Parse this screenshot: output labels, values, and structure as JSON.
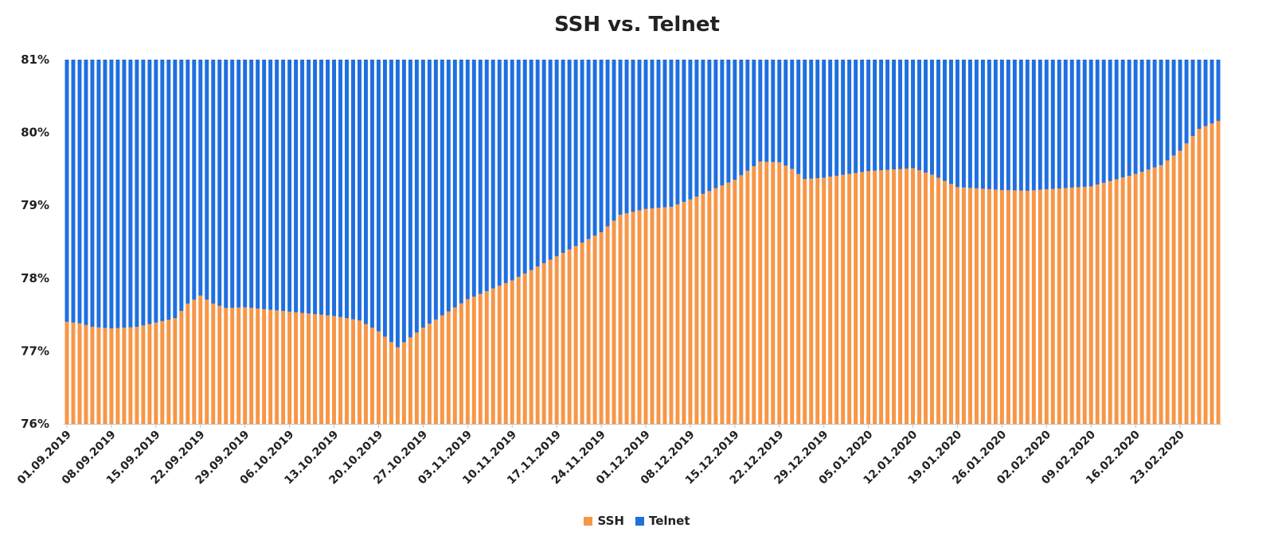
{
  "chart_data": {
    "type": "bar",
    "stacked": true,
    "title": "SSH vs. Telnet",
    "xlabel": "",
    "ylabel": "",
    "ylim": [
      0.76,
      0.81
    ],
    "y_ticks": [
      "76%",
      "77%",
      "78%",
      "79%",
      "80%",
      "81%"
    ],
    "x_start": "01.09.2019",
    "x_end": "29.02.2020",
    "x_tick_labels": [
      "01.09.2019",
      "08.09.2019",
      "15.09.2019",
      "22.09.2019",
      "29.09.2019",
      "06.10.2019",
      "13.10.2019",
      "20.10.2019",
      "27.10.2019",
      "03.11.2019",
      "10.11.2019",
      "17.11.2019",
      "24.11.2019",
      "01.12.2019",
      "08.12.2019",
      "15.12.2019",
      "22.12.2019",
      "29.12.2019",
      "05.01.2020",
      "12.01.2020",
      "19.01.2020",
      "26.01.2020",
      "02.02.2020",
      "09.02.2020",
      "16.02.2020",
      "23.02.2020"
    ],
    "series": [
      {
        "name": "SSH",
        "color": "#F79646",
        "keyframes": [
          [
            "01.09.2019",
            0.774
          ],
          [
            "03.09.2019",
            0.7738
          ],
          [
            "05.09.2019",
            0.7733
          ],
          [
            "08.09.2019",
            0.7731
          ],
          [
            "12.09.2019",
            0.7733
          ],
          [
            "15.09.2019",
            0.7739
          ],
          [
            "18.09.2019",
            0.7745
          ],
          [
            "20.09.2019",
            0.7765
          ],
          [
            "22.09.2019",
            0.7776
          ],
          [
            "24.09.2019",
            0.7765
          ],
          [
            "26.09.2019",
            0.7759
          ],
          [
            "29.09.2019",
            0.776
          ],
          [
            "06.10.2019",
            0.7754
          ],
          [
            "13.10.2019",
            0.7748
          ],
          [
            "17.10.2019",
            0.7742
          ],
          [
            "20.10.2019",
            0.7727
          ],
          [
            "23.10.2019",
            0.7705
          ],
          [
            "24.10.2019",
            0.7712
          ],
          [
            "27.10.2019",
            0.7732
          ],
          [
            "03.11.2019",
            0.7771
          ],
          [
            "10.11.2019",
            0.7797
          ],
          [
            "17.11.2019",
            0.783
          ],
          [
            "24.11.2019",
            0.7863
          ],
          [
            "27.11.2019",
            0.7887
          ],
          [
            "01.12.2019",
            0.7895
          ],
          [
            "05.12.2019",
            0.7898
          ],
          [
            "08.12.2019",
            0.7908
          ],
          [
            "15.12.2019",
            0.7935
          ],
          [
            "19.12.2019",
            0.796
          ],
          [
            "22.12.2019",
            0.7959
          ],
          [
            "24.12.2019",
            0.795
          ],
          [
            "26.12.2019",
            0.7936
          ],
          [
            "29.12.2019",
            0.7938
          ],
          [
            "05.01.2020",
            0.7947
          ],
          [
            "12.01.2020",
            0.7951
          ],
          [
            "15.01.2020",
            0.7942
          ],
          [
            "19.01.2020",
            0.7925
          ],
          [
            "26.01.2020",
            0.7921
          ],
          [
            "30.01.2020",
            0.792
          ],
          [
            "02.02.2020",
            0.7922
          ],
          [
            "09.02.2020",
            0.7926
          ],
          [
            "16.02.2020",
            0.7943
          ],
          [
            "20.02.2020",
            0.7955
          ],
          [
            "23.02.2020",
            0.7975
          ],
          [
            "26.02.2020",
            0.8005
          ],
          [
            "29.02.2020",
            0.8016
          ]
        ]
      },
      {
        "name": "Telnet",
        "color": "#1F6FE0",
        "values": "remainder to 81%"
      }
    ],
    "legend": {
      "position": "bottom",
      "entries": [
        "SSH",
        "Telnet"
      ]
    },
    "grid": false
  }
}
